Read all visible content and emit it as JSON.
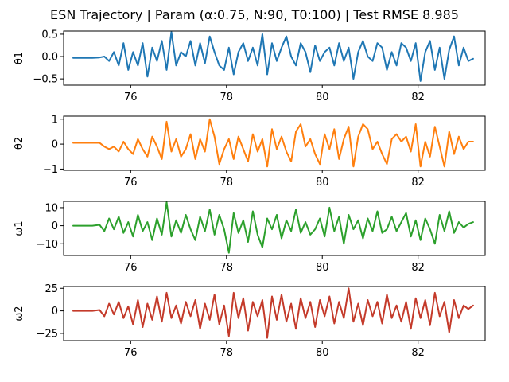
{
  "figure": {
    "title": "ESN Trajectory | Param (α:0.75, N:90, T0:100) | Test RMSE 8.985"
  },
  "chart_data": [
    {
      "type": "line",
      "ylabel": "θ1",
      "color": "#1f77b4",
      "xlim": [
        74.6,
        83.4
      ],
      "ylim": [
        -0.64,
        0.57
      ],
      "xticks": [
        76,
        78,
        80,
        82
      ],
      "xtick_labels": [
        "76",
        "78",
        "80",
        "82"
      ],
      "yticks": [
        -0.5,
        0.0,
        0.5
      ],
      "ytick_labels": [
        "−0.5",
        "0.0",
        "0.5"
      ],
      "grid": false,
      "series": [
        {
          "x": [
            74.8,
            75.0,
            75.2,
            75.35,
            75.45,
            75.55,
            75.65,
            75.75,
            75.85,
            75.95,
            76.05,
            76.15,
            76.25,
            76.35,
            76.45,
            76.55,
            76.65,
            76.75,
            76.85,
            76.95,
            77.05,
            77.15,
            77.25,
            77.35,
            77.45,
            77.55,
            77.65,
            77.75,
            77.85,
            77.95,
            78.05,
            78.15,
            78.25,
            78.35,
            78.45,
            78.55,
            78.65,
            78.75,
            78.85,
            78.95,
            79.05,
            79.15,
            79.25,
            79.35,
            79.45,
            79.55,
            79.65,
            79.75,
            79.85,
            79.95,
            80.05,
            80.15,
            80.25,
            80.35,
            80.45,
            80.55,
            80.65,
            80.75,
            80.85,
            80.95,
            81.05,
            81.15,
            81.25,
            81.35,
            81.45,
            81.55,
            81.65,
            81.75,
            81.85,
            81.95,
            82.05,
            82.15,
            82.25,
            82.35,
            82.45,
            82.55,
            82.65,
            82.75,
            82.85,
            82.95,
            83.05,
            83.15
          ],
          "y": [
            -0.03,
            -0.03,
            -0.03,
            -0.02,
            0.0,
            -0.1,
            0.1,
            -0.2,
            0.3,
            -0.3,
            0.1,
            -0.2,
            0.3,
            -0.45,
            0.2,
            -0.1,
            0.35,
            -0.3,
            0.55,
            -0.2,
            0.1,
            0.0,
            0.35,
            -0.2,
            0.3,
            -0.15,
            0.45,
            0.1,
            -0.2,
            -0.3,
            0.2,
            -0.4,
            0.1,
            0.3,
            -0.1,
            0.2,
            -0.2,
            0.5,
            -0.4,
            0.3,
            -0.1,
            0.2,
            0.45,
            0.0,
            -0.2,
            0.3,
            0.1,
            -0.35,
            0.25,
            -0.1,
            0.1,
            0.2,
            -0.2,
            0.3,
            -0.1,
            0.2,
            -0.5,
            0.1,
            0.35,
            0.0,
            -0.1,
            0.3,
            0.2,
            -0.3,
            0.1,
            -0.2,
            0.3,
            0.2,
            -0.1,
            0.3,
            -0.55,
            0.1,
            0.35,
            -0.3,
            0.2,
            -0.5,
            0.15,
            0.45,
            -0.2,
            0.2,
            -0.1,
            -0.05
          ]
        }
      ]
    },
    {
      "type": "line",
      "ylabel": "θ2",
      "color": "#ff7f0e",
      "xlim": [
        74.6,
        83.4
      ],
      "ylim": [
        -1.05,
        1.12
      ],
      "xticks": [
        76,
        78,
        80,
        82
      ],
      "xtick_labels": [
        "76",
        "78",
        "80",
        "82"
      ],
      "yticks": [
        -1,
        0,
        1
      ],
      "ytick_labels": [
        "−1",
        "0",
        "1"
      ],
      "grid": false,
      "series": [
        {
          "x": [
            74.8,
            75.0,
            75.2,
            75.35,
            75.45,
            75.55,
            75.65,
            75.75,
            75.85,
            75.95,
            76.05,
            76.15,
            76.25,
            76.35,
            76.45,
            76.55,
            76.65,
            76.75,
            76.85,
            76.95,
            77.05,
            77.15,
            77.25,
            77.35,
            77.45,
            77.55,
            77.65,
            77.75,
            77.85,
            77.95,
            78.05,
            78.15,
            78.25,
            78.35,
            78.45,
            78.55,
            78.65,
            78.75,
            78.85,
            78.95,
            79.05,
            79.15,
            79.25,
            79.35,
            79.45,
            79.55,
            79.65,
            79.75,
            79.85,
            79.95,
            80.05,
            80.15,
            80.25,
            80.35,
            80.45,
            80.55,
            80.65,
            80.75,
            80.85,
            80.95,
            81.05,
            81.15,
            81.25,
            81.35,
            81.45,
            81.55,
            81.65,
            81.75,
            81.85,
            81.95,
            82.05,
            82.15,
            82.25,
            82.35,
            82.45,
            82.55,
            82.65,
            82.75,
            82.85,
            82.95,
            83.05,
            83.15
          ],
          "y": [
            0.05,
            0.05,
            0.05,
            0.05,
            -0.1,
            -0.2,
            -0.1,
            -0.3,
            0.1,
            -0.2,
            -0.4,
            0.2,
            -0.2,
            -0.5,
            0.3,
            -0.1,
            -0.6,
            0.9,
            -0.3,
            0.2,
            -0.5,
            -0.2,
            0.4,
            -0.6,
            0.2,
            -0.3,
            1.0,
            0.3,
            -0.8,
            -0.2,
            0.2,
            -0.6,
            0.3,
            -0.2,
            -0.7,
            0.4,
            -0.3,
            0.2,
            -0.9,
            0.6,
            -0.2,
            0.3,
            -0.3,
            -0.7,
            0.5,
            0.8,
            -0.1,
            0.2,
            -0.4,
            -0.8,
            0.4,
            -0.2,
            0.6,
            -0.6,
            0.2,
            0.7,
            -0.9,
            0.3,
            0.8,
            0.6,
            -0.2,
            0.1,
            -0.4,
            -0.8,
            0.2,
            0.4,
            0.1,
            0.3,
            -0.3,
            0.8,
            -0.9,
            0.1,
            -0.5,
            0.7,
            -0.1,
            -0.9,
            0.5,
            -0.4,
            0.3,
            -0.2,
            0.1,
            0.1
          ]
        }
      ]
    },
    {
      "type": "line",
      "ylabel": "ω1",
      "color": "#2ca02c",
      "xlim": [
        74.6,
        83.4
      ],
      "ylim": [
        -16.5,
        13.5
      ],
      "xticks": [
        76,
        78,
        80,
        82
      ],
      "xtick_labels": [
        "76",
        "78",
        "80",
        "82"
      ],
      "yticks": [
        -10,
        0,
        10
      ],
      "ytick_labels": [
        "−10",
        "0",
        "10"
      ],
      "grid": false,
      "series": [
        {
          "x": [
            74.8,
            75.0,
            75.2,
            75.35,
            75.45,
            75.55,
            75.65,
            75.75,
            75.85,
            75.95,
            76.05,
            76.15,
            76.25,
            76.35,
            76.45,
            76.55,
            76.65,
            76.75,
            76.85,
            76.95,
            77.05,
            77.15,
            77.25,
            77.35,
            77.45,
            77.55,
            77.65,
            77.75,
            77.85,
            77.95,
            78.05,
            78.15,
            78.25,
            78.35,
            78.45,
            78.55,
            78.65,
            78.75,
            78.85,
            78.95,
            79.05,
            79.15,
            79.25,
            79.35,
            79.45,
            79.55,
            79.65,
            79.75,
            79.85,
            79.95,
            80.05,
            80.15,
            80.25,
            80.35,
            80.45,
            80.55,
            80.65,
            80.75,
            80.85,
            80.95,
            81.05,
            81.15,
            81.25,
            81.35,
            81.45,
            81.55,
            81.65,
            81.75,
            81.85,
            81.95,
            82.05,
            82.15,
            82.25,
            82.35,
            82.45,
            82.55,
            82.65,
            82.75,
            82.85,
            82.95,
            83.05,
            83.15
          ],
          "y": [
            0,
            0,
            0,
            0.5,
            -3,
            4,
            -2,
            5,
            -4,
            2,
            -6,
            6,
            -3,
            2,
            -8,
            4,
            -5,
            13,
            -6,
            3,
            -4,
            6,
            -2,
            -8,
            5,
            -3,
            9,
            -5,
            6,
            -2,
            -15,
            7,
            -4,
            3,
            -9,
            8,
            -5,
            -12,
            4,
            -2,
            6,
            -7,
            3,
            -3,
            9,
            -4,
            2,
            -5,
            -2,
            4,
            -6,
            10,
            -3,
            5,
            -10,
            6,
            -2,
            3,
            -7,
            4,
            -3,
            8,
            -4,
            -2,
            5,
            -3,
            2,
            7,
            -6,
            3,
            -8,
            4,
            -2,
            -10,
            6,
            -3,
            8,
            -4,
            2,
            -1,
            1,
            2
          ]
        }
      ]
    },
    {
      "type": "line",
      "ylabel": "ω2",
      "color": "#c43a2a",
      "xlim": [
        74.6,
        83.4
      ],
      "ylim": [
        -33,
        27
      ],
      "xticks": [
        76,
        78,
        80,
        82
      ],
      "xtick_labels": [
        "76",
        "78",
        "80",
        "82"
      ],
      "yticks": [
        -25,
        0,
        25
      ],
      "ytick_labels": [
        "−25",
        "0",
        "25"
      ],
      "grid": false,
      "series": [
        {
          "x": [
            74.8,
            75.0,
            75.2,
            75.35,
            75.45,
            75.55,
            75.65,
            75.75,
            75.85,
            75.95,
            76.05,
            76.15,
            76.25,
            76.35,
            76.45,
            76.55,
            76.65,
            76.75,
            76.85,
            76.95,
            77.05,
            77.15,
            77.25,
            77.35,
            77.45,
            77.55,
            77.65,
            77.75,
            77.85,
            77.95,
            78.05,
            78.15,
            78.25,
            78.35,
            78.45,
            78.55,
            78.65,
            78.75,
            78.85,
            78.95,
            79.05,
            79.15,
            79.25,
            79.35,
            79.45,
            79.55,
            79.65,
            79.75,
            79.85,
            79.95,
            80.05,
            80.15,
            80.25,
            80.35,
            80.45,
            80.55,
            80.65,
            80.75,
            80.85,
            80.95,
            81.05,
            81.15,
            81.25,
            81.35,
            81.45,
            81.55,
            81.65,
            81.75,
            81.85,
            81.95,
            82.05,
            82.15,
            82.25,
            82.35,
            82.45,
            82.55,
            82.65,
            82.75,
            82.85,
            82.95,
            83.05,
            83.15
          ],
          "y": [
            0,
            0,
            0,
            1,
            -6,
            8,
            -4,
            10,
            -8,
            5,
            -15,
            12,
            -18,
            8,
            -10,
            16,
            -12,
            20,
            -8,
            6,
            -14,
            10,
            -6,
            12,
            -20,
            8,
            -10,
            18,
            -15,
            6,
            -28,
            20,
            -8,
            14,
            -22,
            10,
            -6,
            12,
            -30,
            16,
            -10,
            18,
            -12,
            8,
            -20,
            14,
            -8,
            10,
            -18,
            12,
            -6,
            16,
            -14,
            10,
            -8,
            25,
            -12,
            8,
            -16,
            12,
            -6,
            10,
            -14,
            18,
            -8,
            6,
            -12,
            10,
            -20,
            14,
            -8,
            12,
            -16,
            20,
            -6,
            10,
            -24,
            12,
            -8,
            6,
            2,
            6
          ]
        }
      ]
    }
  ]
}
